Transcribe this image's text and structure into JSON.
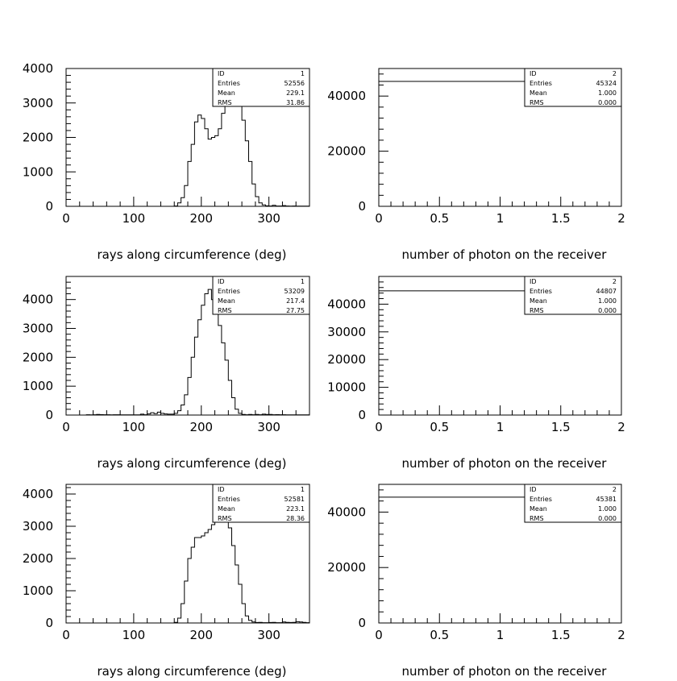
{
  "chart_data": [
    {
      "type": "bar",
      "subtype": "histogram",
      "xlabel": "rays along circumference (deg)",
      "xlim": [
        0,
        360
      ],
      "ylim": [
        0,
        4000
      ],
      "xticks": [
        "0",
        "100",
        "200",
        "300"
      ],
      "yticks": [
        "0",
        "1000",
        "2000",
        "3000",
        "4000"
      ],
      "stats": {
        "ID": "1",
        "Entries": "52556",
        "Mean": "229.1",
        "RMS": "31.86"
      },
      "bin_width": 5,
      "bin_start": 160,
      "values": [
        10,
        100,
        250,
        600,
        1300,
        1800,
        2450,
        2650,
        2550,
        2250,
        1950,
        2000,
        2050,
        2250,
        2700,
        3000,
        3300,
        3600,
        3400,
        3000,
        2500,
        1900,
        1300,
        650,
        280,
        100,
        40,
        15,
        10,
        30,
        10,
        10,
        20,
        10,
        5,
        10,
        5,
        5,
        5,
        5
      ]
    },
    {
      "type": "bar",
      "subtype": "histogram",
      "xlabel": "number of photon on the receiver",
      "xlim": [
        0,
        2
      ],
      "ylim": [
        0,
        50000
      ],
      "xticks": [
        "0",
        "0.5",
        "1",
        "1.5",
        "2"
      ],
      "yticks": [
        "0",
        "20000",
        "40000"
      ],
      "stats": {
        "ID": "2",
        "Entries": "45324",
        "Mean": "1.000",
        "RMS": "0.000"
      },
      "x": [
        1
      ],
      "values": [
        45324
      ]
    },
    {
      "type": "bar",
      "subtype": "histogram",
      "xlabel": "rays along circumference (deg)",
      "xlim": [
        0,
        360
      ],
      "ylim": [
        0,
        4800
      ],
      "xticks": [
        "0",
        "100",
        "200",
        "300"
      ],
      "yticks": [
        "0",
        "1000",
        "2000",
        "3000",
        "4000"
      ],
      "stats": {
        "ID": "1",
        "Entries": "53209",
        "Mean": "217.4",
        "RMS": "27.75"
      },
      "bin_width": 5,
      "bin_start": 155,
      "values": [
        30,
        60,
        150,
        350,
        700,
        1300,
        2000,
        2700,
        3300,
        3800,
        4200,
        4350,
        4000,
        3600,
        3100,
        2500,
        1900,
        1200,
        600,
        200,
        60,
        20,
        10,
        20,
        10,
        20,
        10,
        30,
        20,
        20,
        10,
        15,
        10,
        10,
        5,
        5,
        5,
        5,
        5,
        5,
        5
      ],
      "low_tail": {
        "bin_start": 0,
        "values": [
          0,
          0,
          0,
          0,
          0,
          0,
          10,
          5,
          10,
          20,
          15,
          10,
          10,
          5,
          10,
          10,
          5,
          5,
          5,
          5,
          5,
          5,
          30,
          10,
          40,
          80,
          50,
          100,
          60,
          40,
          30
        ]
      }
    },
    {
      "type": "bar",
      "subtype": "histogram",
      "xlabel": "number of photon on the receiver",
      "xlim": [
        0,
        2
      ],
      "ylim": [
        0,
        50000
      ],
      "xticks": [
        "0",
        "0.5",
        "1",
        "1.5",
        "2"
      ],
      "yticks": [
        "0",
        "10000",
        "20000",
        "30000",
        "40000"
      ],
      "stats": {
        "ID": "2",
        "Entries": "44807",
        "Mean": "1.000",
        "RMS": "0.000"
      },
      "x": [
        1
      ],
      "values": [
        44807
      ]
    },
    {
      "type": "bar",
      "subtype": "histogram",
      "xlabel": "rays along circumference (deg)",
      "xlim": [
        0,
        360
      ],
      "ylim": [
        0,
        4300
      ],
      "xticks": [
        "0",
        "100",
        "200",
        "300"
      ],
      "yticks": [
        "0",
        "1000",
        "2000",
        "3000",
        "4000"
      ],
      "stats": {
        "ID": "1",
        "Entries": "52581",
        "Mean": "223.1",
        "RMS": "28.36"
      },
      "bin_width": 5,
      "bin_start": 160,
      "values": [
        20,
        150,
        600,
        1300,
        2000,
        2350,
        2650,
        2650,
        2700,
        2800,
        2900,
        3050,
        3200,
        3350,
        3500,
        3300,
        2950,
        2400,
        1800,
        1200,
        600,
        220,
        80,
        30,
        15,
        20,
        10,
        10,
        15,
        20,
        10,
        10,
        30,
        20,
        15,
        20,
        40,
        30,
        20,
        10
      ]
    },
    {
      "type": "bar",
      "subtype": "histogram",
      "xlabel": "number of photon on the receiver",
      "xlim": [
        0,
        2
      ],
      "ylim": [
        0,
        50000
      ],
      "xticks": [
        "0",
        "0.5",
        "1",
        "1.5",
        "2"
      ],
      "yticks": [
        "0",
        "20000",
        "40000"
      ],
      "stats": {
        "ID": "2",
        "Entries": "45381",
        "Mean": "1.000",
        "RMS": "0.000"
      },
      "x": [
        1
      ],
      "values": [
        45381
      ]
    }
  ]
}
